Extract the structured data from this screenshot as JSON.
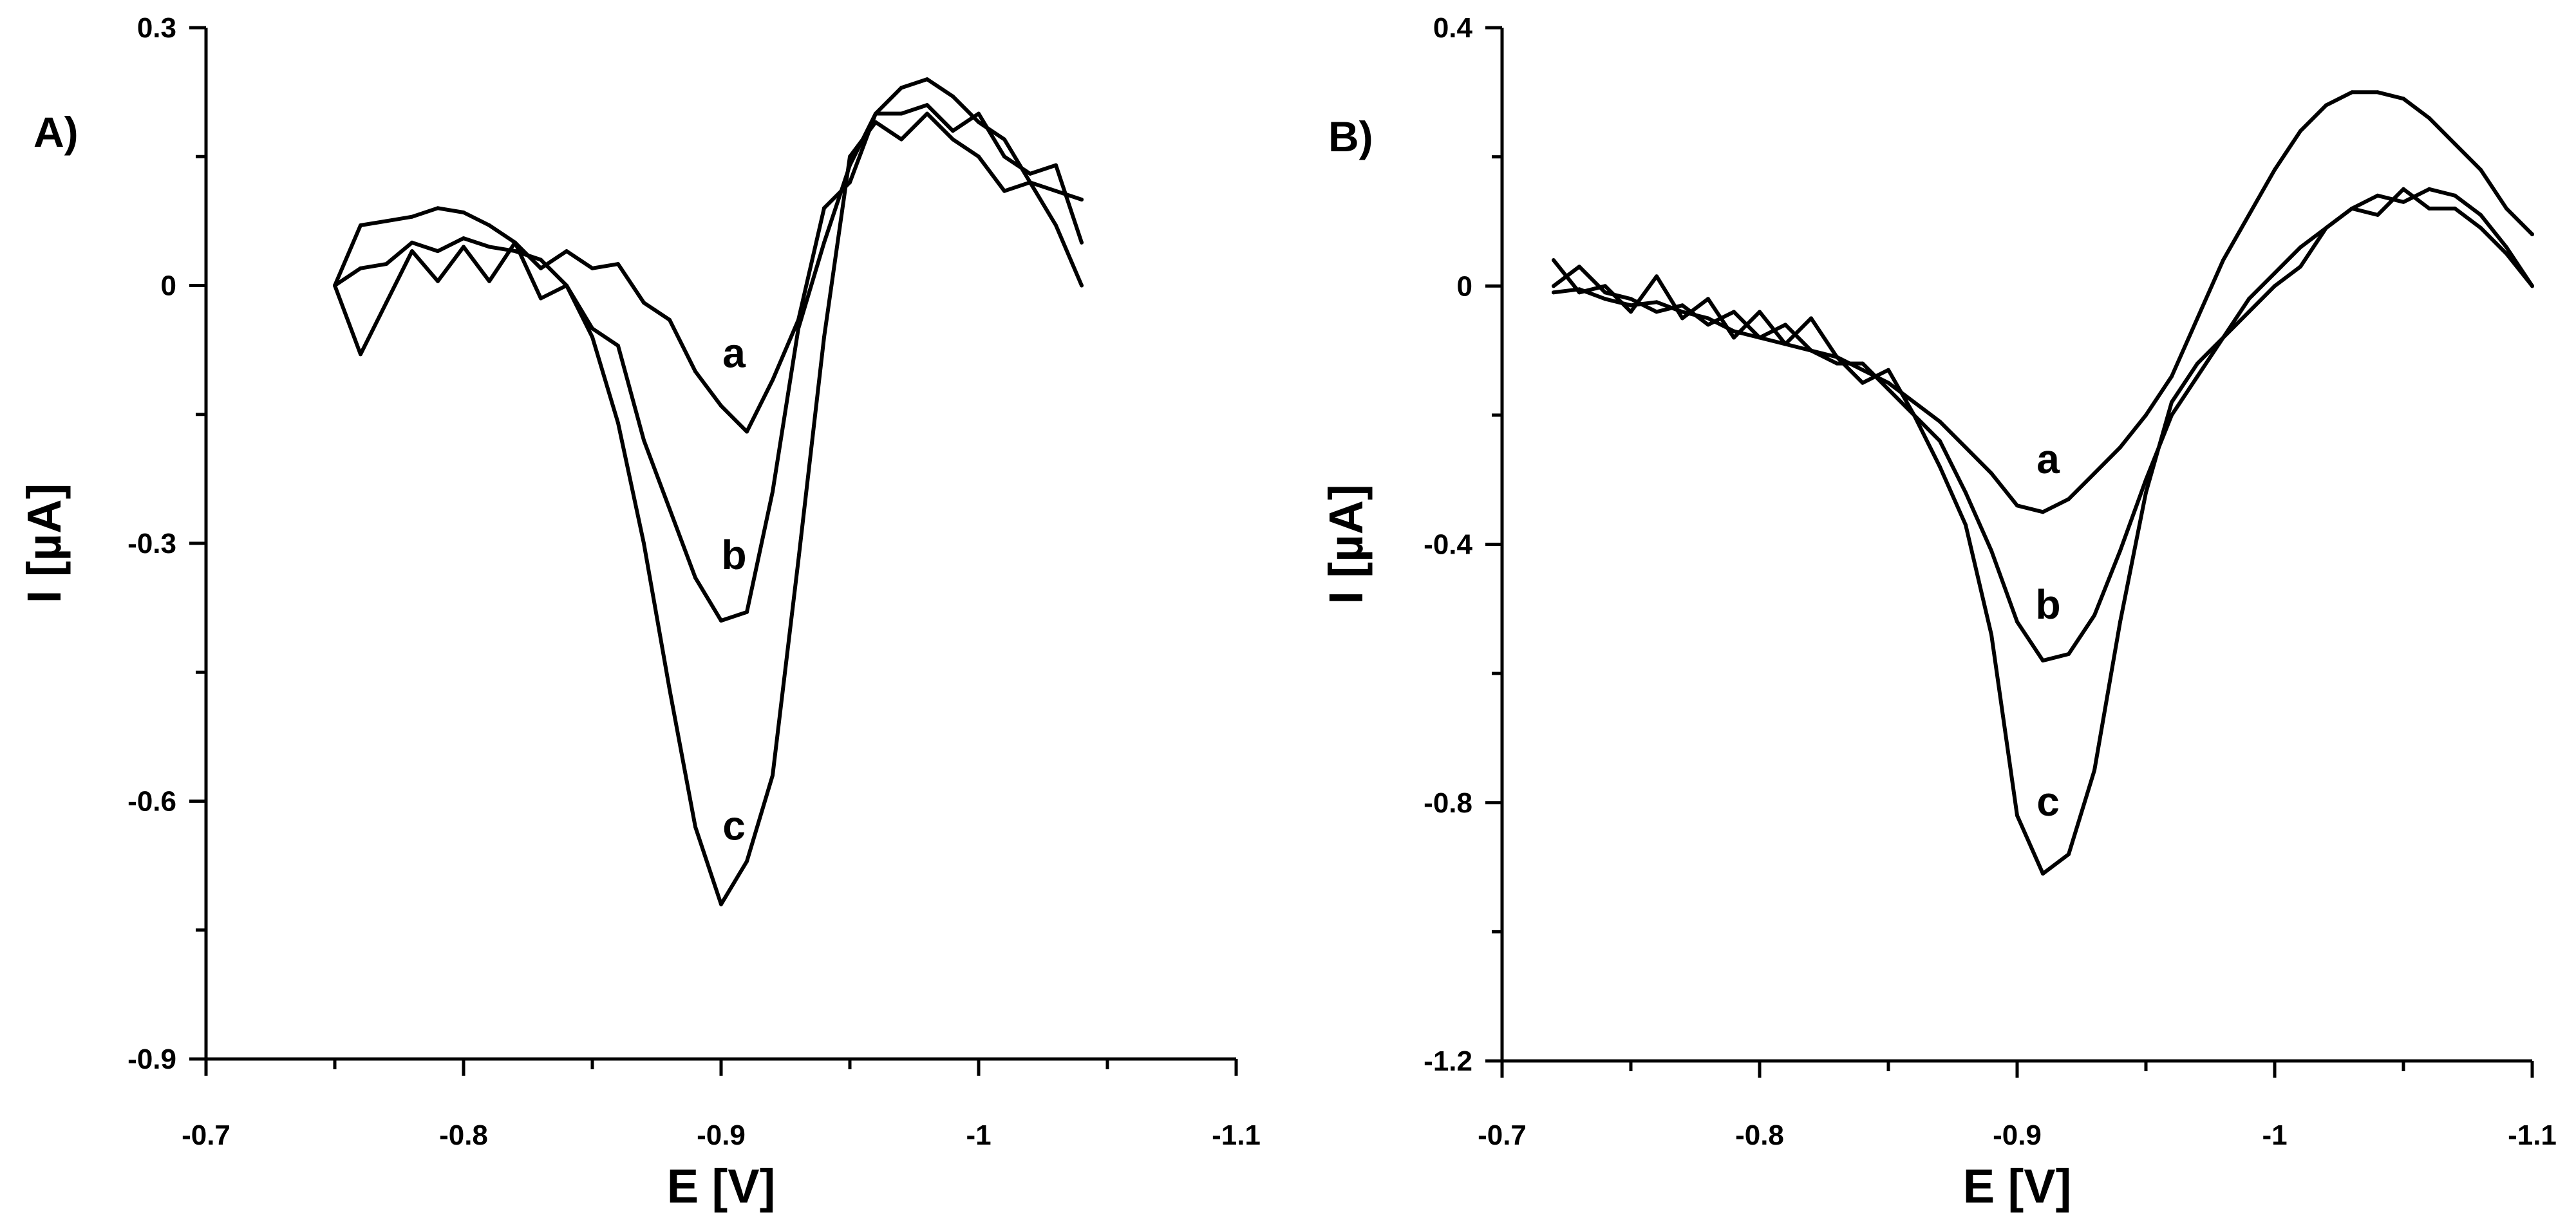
{
  "chart_data": [
    {
      "type": "line",
      "panel": "A)",
      "xlabel": "E [V]",
      "ylabel": "I [µA]",
      "xlim": [
        -0.7,
        -1.1
      ],
      "ylim": [
        -0.9,
        0.3
      ],
      "xticks": [
        -0.7,
        -0.8,
        -0.9,
        -1,
        -1.1
      ],
      "xtick_labels": [
        "-0.7",
        "-0.8",
        "-0.9",
        "-1",
        "-1.1"
      ],
      "yticks": [
        0.3,
        0,
        -0.3,
        -0.6,
        -0.9
      ],
      "ytick_labels": [
        "0.3",
        "0",
        "-0.3",
        "-0.6",
        "-0.9"
      ],
      "x": [
        -0.75,
        -0.76,
        -0.77,
        -0.78,
        -0.79,
        -0.8,
        -0.81,
        -0.82,
        -0.83,
        -0.84,
        -0.85,
        -0.86,
        -0.87,
        -0.88,
        -0.89,
        -0.9,
        -0.91,
        -0.92,
        -0.93,
        -0.94,
        -0.95,
        -0.96,
        -0.97,
        -0.98,
        -0.99,
        -1.0,
        -1.01,
        -1.02,
        -1.03,
        -1.04
      ],
      "series": [
        {
          "name": "a",
          "values": [
            0.0,
            0.07,
            0.075,
            0.08,
            0.09,
            0.085,
            0.07,
            0.05,
            0.02,
            0.04,
            0.02,
            0.025,
            -0.02,
            -0.04,
            -0.1,
            -0.14,
            -0.17,
            -0.11,
            -0.04,
            0.09,
            0.12,
            0.2,
            0.23,
            0.24,
            0.22,
            0.19,
            0.17,
            0.12,
            0.11,
            0.1
          ]
        },
        {
          "name": "b",
          "values": [
            0.0,
            0.02,
            0.025,
            0.05,
            0.04,
            0.055,
            0.045,
            0.04,
            0.03,
            0.0,
            -0.05,
            -0.07,
            -0.18,
            -0.26,
            -0.34,
            -0.39,
            -0.38,
            -0.24,
            -0.05,
            0.05,
            0.14,
            0.2,
            0.2,
            0.21,
            0.18,
            0.2,
            0.15,
            0.13,
            0.14,
            0.05
          ]
        },
        {
          "name": "c",
          "values": [
            0.0,
            -0.08,
            -0.02,
            0.04,
            0.005,
            0.045,
            0.005,
            0.05,
            -0.015,
            0.0,
            -0.06,
            -0.16,
            -0.3,
            -0.47,
            -0.63,
            -0.72,
            -0.67,
            -0.57,
            -0.32,
            -0.06,
            0.15,
            0.19,
            0.17,
            0.2,
            0.17,
            0.15,
            0.11,
            0.12,
            0.07,
            0.0
          ]
        }
      ],
      "annotations": [
        {
          "text": "a",
          "x": -0.905,
          "y": -0.095
        },
        {
          "text": "b",
          "x": -0.905,
          "y": -0.33
        },
        {
          "text": "c",
          "x": -0.905,
          "y": -0.645
        }
      ]
    },
    {
      "type": "line",
      "panel": "B)",
      "xlabel": "E [V]",
      "ylabel": "I [µA]",
      "xlim": [
        -0.7,
        -1.1
      ],
      "ylim": [
        -1.2,
        0.4
      ],
      "xticks": [
        -0.7,
        -0.8,
        -0.9,
        -1,
        -1.1
      ],
      "xtick_labels": [
        "-0.7",
        "-0.8",
        "-0.9",
        "-1",
        "-1.1"
      ],
      "yticks": [
        0.4,
        0,
        -0.4,
        -0.8,
        -1.2
      ],
      "ytick_labels": [
        "0.4",
        "0",
        "-0.4",
        "-0.8",
        "-1.2"
      ],
      "x": [
        -0.72,
        -0.73,
        -0.74,
        -0.75,
        -0.76,
        -0.77,
        -0.78,
        -0.79,
        -0.8,
        -0.81,
        -0.82,
        -0.83,
        -0.84,
        -0.85,
        -0.86,
        -0.87,
        -0.88,
        -0.89,
        -0.9,
        -0.91,
        -0.92,
        -0.93,
        -0.94,
        -0.95,
        -0.96,
        -0.97,
        -0.98,
        -0.99,
        -1.0,
        -1.01,
        -1.02,
        -1.03,
        -1.04,
        -1.05,
        -1.06,
        -1.07,
        -1.08,
        -1.09,
        -1.1
      ],
      "series": [
        {
          "name": "a",
          "values": [
            -0.01,
            -0.005,
            -0.02,
            -0.03,
            -0.025,
            -0.04,
            -0.05,
            -0.07,
            -0.08,
            -0.09,
            -0.1,
            -0.11,
            -0.13,
            -0.15,
            -0.18,
            -0.21,
            -0.25,
            -0.29,
            -0.34,
            -0.35,
            -0.33,
            -0.29,
            -0.25,
            -0.2,
            -0.14,
            -0.05,
            0.04,
            0.11,
            0.18,
            0.24,
            0.28,
            0.3,
            0.3,
            0.29,
            0.26,
            0.22,
            0.18,
            0.12,
            0.08
          ]
        },
        {
          "name": "b",
          "values": [
            0.0,
            0.03,
            -0.01,
            -0.02,
            -0.04,
            -0.03,
            -0.06,
            -0.04,
            -0.08,
            -0.06,
            -0.1,
            -0.12,
            -0.12,
            -0.16,
            -0.2,
            -0.24,
            -0.32,
            -0.41,
            -0.52,
            -0.58,
            -0.57,
            -0.51,
            -0.41,
            -0.3,
            -0.2,
            -0.14,
            -0.08,
            -0.02,
            0.02,
            0.06,
            0.09,
            0.12,
            0.14,
            0.13,
            0.15,
            0.14,
            0.11,
            0.06,
            0.0
          ]
        },
        {
          "name": "c",
          "values": [
            0.04,
            -0.01,
            0.0,
            -0.04,
            0.015,
            -0.05,
            -0.02,
            -0.08,
            -0.04,
            -0.09,
            -0.05,
            -0.11,
            -0.15,
            -0.13,
            -0.2,
            -0.28,
            -0.37,
            -0.54,
            -0.82,
            -0.91,
            -0.88,
            -0.75,
            -0.52,
            -0.32,
            -0.18,
            -0.12,
            -0.08,
            -0.04,
            0.0,
            0.03,
            0.09,
            0.12,
            0.11,
            0.15,
            0.12,
            0.12,
            0.09,
            0.05,
            0.0
          ]
        }
      ],
      "annotations": [
        {
          "text": "a",
          "x": -0.912,
          "y": -0.29
        },
        {
          "text": "b",
          "x": -0.912,
          "y": -0.515
        },
        {
          "text": "c",
          "x": -0.912,
          "y": -0.82
        }
      ]
    }
  ]
}
